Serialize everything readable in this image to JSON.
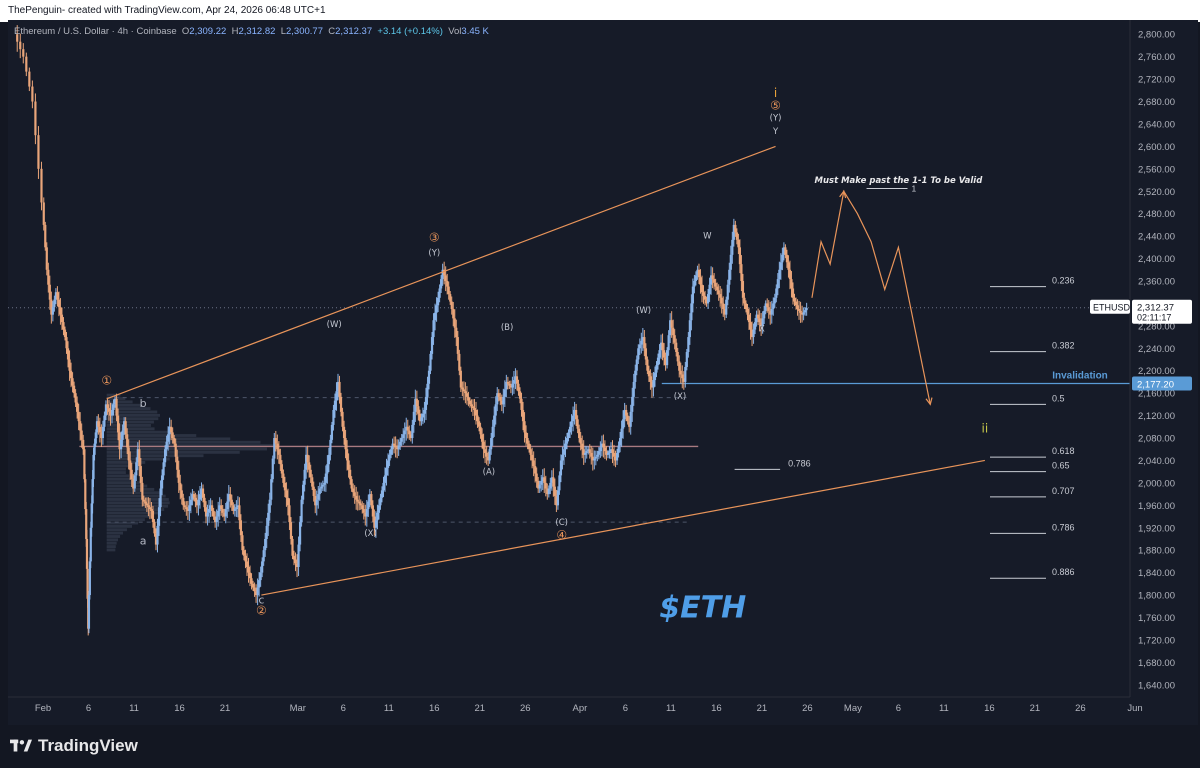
{
  "header": {
    "text": "ThePenguin- created with TradingView.com, Apr 24, 2026 06:48 UTC+1"
  },
  "legend": {
    "symbol": "Ethereum / U.S. Dollar · 4h · Coinbase",
    "o_label": "O",
    "o": "2,309.22",
    "h_label": "H",
    "h": "2,312.82",
    "l_label": "L",
    "l": "2,300.77",
    "c_label": "C",
    "c": "2,312.37",
    "change": "+3.14 (+0.14%)",
    "vol_label": "Vol",
    "vol": "3.45 K"
  },
  "footer": {
    "brand": "TradingView"
  },
  "colors": {
    "background": "#161b28",
    "up": "#8ab4e8",
    "down": "#e9a57a",
    "orange_line": "#e8945a",
    "invalidation": "#5a9bd6",
    "poc": "#a87a80",
    "ii_label": "#c8c84a",
    "i_label": "#e9a33a"
  },
  "chart_data": {
    "type": "candlestick",
    "symbol": "ETHUSD",
    "title": "$ETH",
    "y_axis": {
      "ylim": [
        1620,
        2820
      ],
      "ticks": [
        "2,800.00",
        "2,760.00",
        "2,720.00",
        "2,680.00",
        "2,640.00",
        "2,600.00",
        "2,560.00",
        "2,520.00",
        "2,480.00",
        "2,440.00",
        "2,400.00",
        "2,360.00",
        "2,320.00",
        "2,280.00",
        "2,240.00",
        "2,200.00",
        "2,160.00",
        "2,120.00",
        "2,080.00",
        "2,040.00",
        "2,000.00",
        "1,960.00",
        "1,920.00",
        "1,880.00",
        "1,840.00",
        "1,800.00",
        "1,760.00",
        "1,720.00",
        "1,680.00",
        "1,640.00"
      ]
    },
    "x_axis": {
      "ticks": [
        "Feb",
        "6",
        "11",
        "16",
        "21",
        "Mar",
        "6",
        "11",
        "16",
        "21",
        "26",
        "Apr",
        "6",
        "11",
        "16",
        "21",
        "26",
        "May",
        "6",
        "11",
        "16",
        "21",
        "26",
        "Jun"
      ],
      "tick_days": [
        0,
        5,
        10,
        15,
        20,
        28,
        33,
        38,
        43,
        48,
        53,
        59,
        64,
        69,
        74,
        79,
        84,
        89,
        94,
        99,
        104,
        109,
        114,
        120
      ]
    },
    "price_path": [
      [
        -3,
        2800
      ],
      [
        -2,
        2760
      ],
      [
        -1,
        2680
      ],
      [
        0,
        2500
      ],
      [
        0.5,
        2380
      ],
      [
        1,
        2300
      ],
      [
        1.5,
        2340
      ],
      [
        2,
        2300
      ],
      [
        2.5,
        2260
      ],
      [
        3,
        2200
      ],
      [
        3.5,
        2160
      ],
      [
        4,
        2110
      ],
      [
        4.5,
        2060
      ],
      [
        4.8,
        1900
      ],
      [
        5,
        1740
      ],
      [
        5.3,
        1920
      ],
      [
        5.6,
        2050
      ],
      [
        6,
        2110
      ],
      [
        6.5,
        2080
      ],
      [
        7,
        2140
      ],
      [
        7.5,
        2120
      ],
      [
        8,
        2150
      ],
      [
        8.5,
        2060
      ],
      [
        9,
        2110
      ],
      [
        9.5,
        2040
      ],
      [
        10,
        1990
      ],
      [
        10.5,
        2060
      ],
      [
        11,
        1970
      ],
      [
        11.5,
        1960
      ],
      [
        12,
        1950
      ],
      [
        12.5,
        1890
      ],
      [
        13,
        1990
      ],
      [
        13.5,
        2060
      ],
      [
        14,
        2100
      ],
      [
        14.5,
        2070
      ],
      [
        15,
        2000
      ],
      [
        15.5,
        1960
      ],
      [
        16,
        1950
      ],
      [
        16.5,
        1980
      ],
      [
        17,
        1960
      ],
      [
        17.5,
        1990
      ],
      [
        18,
        1940
      ],
      [
        18.5,
        1960
      ],
      [
        19,
        1930
      ],
      [
        19.5,
        1960
      ],
      [
        20,
        1940
      ],
      [
        20.5,
        1980
      ],
      [
        21,
        1950
      ],
      [
        21.5,
        1960
      ],
      [
        22,
        1880
      ],
      [
        22.5,
        1850
      ],
      [
        23,
        1820
      ],
      [
        23.5,
        1800
      ],
      [
        24,
        1840
      ],
      [
        24.5,
        1900
      ],
      [
        25,
        1970
      ],
      [
        25.5,
        2080
      ],
      [
        26,
        2050
      ],
      [
        26.5,
        2000
      ],
      [
        27,
        1960
      ],
      [
        27.5,
        1870
      ],
      [
        28,
        1850
      ],
      [
        28.5,
        1970
      ],
      [
        29,
        2050
      ],
      [
        29.5,
        2010
      ],
      [
        30,
        1960
      ],
      [
        30.5,
        1990
      ],
      [
        31,
        2000
      ],
      [
        31.5,
        2050
      ],
      [
        32,
        2130
      ],
      [
        32.5,
        2180
      ],
      [
        33,
        2100
      ],
      [
        33.5,
        2040
      ],
      [
        34,
        1990
      ],
      [
        34.5,
        1970
      ],
      [
        35,
        1960
      ],
      [
        35.5,
        1940
      ],
      [
        36,
        1980
      ],
      [
        36.5,
        1920
      ],
      [
        37,
        1960
      ],
      [
        37.5,
        2000
      ],
      [
        38,
        2040
      ],
      [
        38.5,
        2070
      ],
      [
        39,
        2060
      ],
      [
        39.5,
        2080
      ],
      [
        40,
        2100
      ],
      [
        40.5,
        2080
      ],
      [
        41,
        2150
      ],
      [
        41.5,
        2110
      ],
      [
        42,
        2130
      ],
      [
        42.5,
        2200
      ],
      [
        43,
        2290
      ],
      [
        43.5,
        2330
      ],
      [
        44,
        2380
      ],
      [
        44.5,
        2350
      ],
      [
        45,
        2310
      ],
      [
        45.5,
        2260
      ],
      [
        46,
        2170
      ],
      [
        46.5,
        2160
      ],
      [
        47,
        2140
      ],
      [
        47.5,
        2130
      ],
      [
        48,
        2100
      ],
      [
        48.5,
        2060
      ],
      [
        49,
        2040
      ],
      [
        49.5,
        2100
      ],
      [
        50,
        2160
      ],
      [
        50.5,
        2140
      ],
      [
        51,
        2180
      ],
      [
        51.5,
        2170
      ],
      [
        52,
        2190
      ],
      [
        52.5,
        2150
      ],
      [
        53,
        2090
      ],
      [
        53.5,
        2060
      ],
      [
        54,
        2030
      ],
      [
        54.5,
        1990
      ],
      [
        55,
        2010
      ],
      [
        55.5,
        1980
      ],
      [
        56,
        2010
      ],
      [
        56.5,
        1960
      ],
      [
        57,
        2040
      ],
      [
        57.5,
        2070
      ],
      [
        58,
        2100
      ],
      [
        58.5,
        2130
      ],
      [
        59,
        2080
      ],
      [
        59.5,
        2050
      ],
      [
        60,
        2060
      ],
      [
        60.5,
        2040
      ],
      [
        61,
        2050
      ],
      [
        61.5,
        2070
      ],
      [
        62,
        2050
      ],
      [
        62.5,
        2060
      ],
      [
        63,
        2040
      ],
      [
        63.5,
        2080
      ],
      [
        64,
        2130
      ],
      [
        64.5,
        2100
      ],
      [
        65,
        2180
      ],
      [
        65.5,
        2240
      ],
      [
        66,
        2260
      ],
      [
        66.5,
        2200
      ],
      [
        67,
        2170
      ],
      [
        67.5,
        2210
      ],
      [
        68,
        2250
      ],
      [
        68.5,
        2210
      ],
      [
        69,
        2290
      ],
      [
        69.5,
        2250
      ],
      [
        70,
        2200
      ],
      [
        70.5,
        2180
      ],
      [
        71,
        2260
      ],
      [
        71.5,
        2350
      ],
      [
        72,
        2380
      ],
      [
        72.5,
        2340
      ],
      [
        73,
        2320
      ],
      [
        73.5,
        2370
      ],
      [
        74,
        2350
      ],
      [
        74.5,
        2330
      ],
      [
        75,
        2300
      ],
      [
        75.5,
        2380
      ],
      [
        76,
        2460
      ],
      [
        76.5,
        2420
      ],
      [
        77,
        2330
      ],
      [
        77.5,
        2300
      ],
      [
        78,
        2260
      ],
      [
        78.5,
        2300
      ],
      [
        79,
        2280
      ],
      [
        79.5,
        2320
      ],
      [
        80,
        2300
      ],
      [
        80.5,
        2330
      ],
      [
        81,
        2380
      ],
      [
        81.5,
        2420
      ],
      [
        82,
        2380
      ],
      [
        82.5,
        2330
      ],
      [
        83,
        2310
      ],
      [
        83.5,
        2300
      ],
      [
        84,
        2312
      ]
    ],
    "projection_path": [
      [
        84.5,
        2330
      ],
      [
        85.5,
        2430
      ],
      [
        86.5,
        2390
      ],
      [
        88,
        2520
      ],
      [
        89.5,
        2480
      ],
      [
        91,
        2430
      ],
      [
        92.5,
        2345
      ],
      [
        94,
        2420
      ],
      [
        97.5,
        2140
      ]
    ],
    "trendlines": [
      {
        "name": "upper-channel",
        "from": [
          7,
          2150
        ],
        "to": [
          80.5,
          2600
        ]
      },
      {
        "name": "lower-channel",
        "from": [
          24,
          1800
        ],
        "to": [
          103.5,
          2040
        ]
      }
    ],
    "horizontal_lines": [
      {
        "name": "invalidation",
        "price": 2177.2,
        "from_day": 68,
        "label": "Invalidation"
      },
      {
        "name": "poc",
        "price": 2065,
        "from_day": 4,
        "to_day": 72
      },
      {
        "name": "vp-top",
        "price": 2152,
        "from_day": 7,
        "to_day": 71,
        "dashed": true
      },
      {
        "name": "vp-bottom",
        "price": 1930,
        "from_day": 7,
        "to_day": 71,
        "dashed": true
      },
      {
        "name": "last-price",
        "price": 2312.37,
        "dotted": true
      }
    ],
    "fib_levels": [
      {
        "label": "0.236",
        "price": 2350
      },
      {
        "label": "0.382",
        "price": 2234
      },
      {
        "label": "0.5",
        "price": 2140
      },
      {
        "label": "0.618",
        "price": 2046
      },
      {
        "label": "0.65",
        "price": 2020
      },
      {
        "label": "0.707",
        "price": 1975
      },
      {
        "label": "0.786",
        "price": 1910
      },
      {
        "label": "0.886",
        "price": 1830
      }
    ],
    "fib_extra": {
      "label": "0.786",
      "price": 2024
    },
    "target_line": {
      "label": "1",
      "price": 2525
    },
    "price_labels": {
      "last": "2,312.37",
      "countdown": "02:11:17",
      "invalidation": "2,177.20",
      "symbol": "ETHUSD"
    },
    "annotations": [
      {
        "text": "①",
        "day": 7,
        "price": 2175,
        "kind": "circled"
      },
      {
        "text": "b",
        "day": 11,
        "price": 2135,
        "kind": "plain"
      },
      {
        "text": "a",
        "day": 11,
        "price": 1890,
        "kind": "plain"
      },
      {
        "text": "c",
        "day": 24,
        "price": 1785,
        "kind": "plain"
      },
      {
        "text": "②",
        "day": 24,
        "price": 1765,
        "kind": "circled"
      },
      {
        "text": "(W)",
        "day": 32,
        "price": 2278,
        "kind": "small"
      },
      {
        "text": "(X)",
        "day": 36,
        "price": 1905,
        "kind": "small"
      },
      {
        "text": "③",
        "day": 43,
        "price": 2430,
        "kind": "circled"
      },
      {
        "text": "(Y)",
        "day": 43,
        "price": 2405,
        "kind": "small"
      },
      {
        "text": "(B)",
        "day": 51,
        "price": 2273,
        "kind": "small"
      },
      {
        "text": "(A)",
        "day": 49,
        "price": 2015,
        "kind": "small"
      },
      {
        "text": "(C)",
        "day": 57,
        "price": 1925,
        "kind": "small"
      },
      {
        "text": "④",
        "day": 57,
        "price": 1900,
        "kind": "circled"
      },
      {
        "text": "(W)",
        "day": 66,
        "price": 2303,
        "kind": "small"
      },
      {
        "text": "(X)",
        "day": 70,
        "price": 2150,
        "kind": "small"
      },
      {
        "text": "W",
        "day": 73,
        "price": 2436,
        "kind": "small"
      },
      {
        "text": "X",
        "day": 79,
        "price": 2270,
        "kind": "small"
      },
      {
        "text": "i",
        "day": 80.5,
        "price": 2688,
        "kind": "i"
      },
      {
        "text": "⑤",
        "day": 80.5,
        "price": 2666,
        "kind": "circled"
      },
      {
        "text": "(Y)",
        "day": 80.5,
        "price": 2646,
        "kind": "small"
      },
      {
        "text": "Y",
        "day": 80.5,
        "price": 2622,
        "kind": "small"
      },
      {
        "text": "ii",
        "day": 103.5,
        "price": 2090,
        "kind": "ii"
      },
      {
        "text": "Must Make past the 1-1 To be Valid",
        "day": 94,
        "price": 2535,
        "kind": "note"
      }
    ]
  }
}
